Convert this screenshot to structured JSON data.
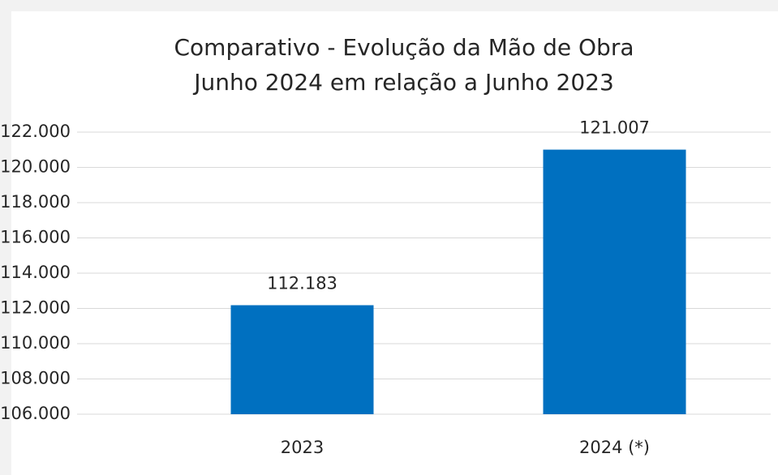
{
  "chart_data": {
    "type": "bar",
    "title": [
      "Comparativo - Evolução da Mão de Obra",
      "Junho 2024 em relação a Junho 2023"
    ],
    "categories": [
      "2023",
      "2024 (*)"
    ],
    "values": [
      112183,
      121007
    ],
    "value_labels": [
      "112.183",
      "121.007"
    ],
    "color": "#0070c0",
    "ylim": [
      106000,
      122000
    ],
    "yticks": [
      {
        "value": 106000,
        "label": "106.000"
      },
      {
        "value": 108000,
        "label": "108.000"
      },
      {
        "value": 110000,
        "label": "110.000"
      },
      {
        "value": 112000,
        "label": "112.000"
      },
      {
        "value": 114000,
        "label": "114.000"
      },
      {
        "value": 116000,
        "label": "116.000"
      },
      {
        "value": 118000,
        "label": "118.000"
      },
      {
        "value": 120000,
        "label": "120.000"
      },
      {
        "value": 122000,
        "label": "122.000"
      }
    ],
    "grid": true
  }
}
